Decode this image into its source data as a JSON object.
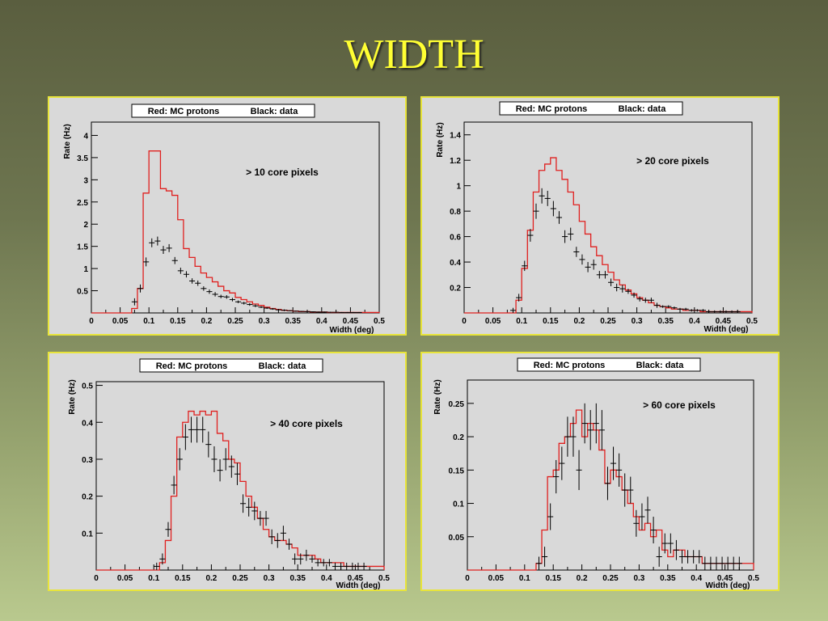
{
  "page": {
    "title": "WIDTH"
  },
  "colors": {
    "mc": "#e0201f",
    "data": "#000000",
    "title": "#ffff33",
    "panel_border": "#e8e43a"
  },
  "chart_data": [
    {
      "type": "line",
      "legend_text": [
        "Red: MC protons",
        "Black: data"
      ],
      "annotation": "> 10 core pixels",
      "xlabel": "Width (deg)",
      "ylabel": "Rate (Hz)",
      "xlim": [
        0,
        0.5
      ],
      "ylim": [
        0,
        4.3
      ],
      "xticks": [
        "0",
        "0.05",
        "0.1",
        "0.15",
        "0.2",
        "0.25",
        "0.3",
        "0.35",
        "0.4",
        "0.45",
        "0.5"
      ],
      "yticks": [
        "0.5",
        "1",
        "1.5",
        "2",
        "2.5",
        "3",
        "3.5",
        "4"
      ],
      "ytick_values": [
        0.5,
        1,
        1.5,
        2,
        2.5,
        3,
        3.5,
        4
      ],
      "bin_width": 0.01,
      "mc_values": [
        0,
        0,
        0,
        0,
        0,
        0,
        0,
        0.1,
        0.55,
        2.7,
        3.65,
        3.65,
        2.8,
        2.75,
        2.65,
        2.1,
        1.45,
        1.25,
        1.05,
        0.9,
        0.8,
        0.7,
        0.6,
        0.5,
        0.45,
        0.35,
        0.3,
        0.25,
        0.2,
        0.17,
        0.13,
        0.1,
        0.08,
        0.06,
        0.05,
        0.04,
        0.03,
        0.03,
        0.02,
        0.02,
        0.02,
        0.01,
        0.01,
        0.01,
        0.01,
        0.01,
        0.01,
        0.01,
        0.01,
        0.01
      ],
      "data_x": [
        0.075,
        0.085,
        0.095,
        0.105,
        0.115,
        0.125,
        0.135,
        0.145,
        0.155,
        0.165,
        0.175,
        0.185,
        0.195,
        0.205,
        0.215,
        0.225,
        0.235,
        0.245,
        0.255,
        0.265,
        0.275,
        0.285,
        0.295,
        0.305,
        0.315,
        0.325,
        0.335,
        0.345,
        0.355,
        0.365,
        0.375,
        0.385,
        0.395,
        0.405,
        0.415,
        0.425,
        0.435,
        0.445,
        0.455,
        0.465
      ],
      "data_y": [
        0.25,
        0.55,
        1.15,
        1.58,
        1.62,
        1.42,
        1.46,
        1.18,
        0.95,
        0.87,
        0.72,
        0.67,
        0.55,
        0.48,
        0.42,
        0.37,
        0.36,
        0.3,
        0.25,
        0.22,
        0.19,
        0.16,
        0.13,
        0.11,
        0.09,
        0.07,
        0.06,
        0.05,
        0.04,
        0.035,
        0.03,
        0.025,
        0.02,
        0.02,
        0.015,
        0.015,
        0.01,
        0.01,
        0.01,
        0.01
      ],
      "data_err": [
        0.08,
        0.09,
        0.1,
        0.1,
        0.1,
        0.09,
        0.09,
        0.08,
        0.07,
        0.07,
        0.06,
        0.06,
        0.05,
        0.05,
        0.05,
        0.04,
        0.04,
        0.04,
        0.03,
        0.03,
        0.03,
        0.03,
        0.02,
        0.02,
        0.02,
        0.02,
        0.02,
        0.01,
        0.01,
        0.01,
        0.01,
        0.01,
        0.01,
        0.01,
        0.01,
        0.01,
        0.01,
        0.01,
        0.01,
        0.01
      ]
    },
    {
      "type": "line",
      "legend_text": [
        "Red: MC protons",
        "Black: data"
      ],
      "annotation": "> 20 core pixels",
      "xlabel": "Width (deg)",
      "ylabel": "Rate (Hz)",
      "xlim": [
        0,
        0.5
      ],
      "ylim": [
        0,
        1.5
      ],
      "xticks": [
        "0",
        "0.05",
        "0.1",
        "0.15",
        "0.2",
        "0.25",
        "0.3",
        "0.35",
        "0.4",
        "0.45",
        "0.5"
      ],
      "yticks": [
        "0.2",
        "0.4",
        "0.6",
        "0.8",
        "1",
        "1.2",
        "1.4"
      ],
      "ytick_values": [
        0.2,
        0.4,
        0.6,
        0.8,
        1,
        1.2,
        1.4
      ],
      "bin_width": 0.01,
      "mc_values": [
        0,
        0,
        0,
        0,
        0,
        0,
        0,
        0,
        0,
        0.1,
        0.35,
        0.65,
        0.95,
        1.12,
        1.17,
        1.22,
        1.12,
        1.05,
        0.95,
        0.85,
        0.72,
        0.62,
        0.52,
        0.45,
        0.38,
        0.32,
        0.26,
        0.22,
        0.18,
        0.15,
        0.12,
        0.1,
        0.08,
        0.06,
        0.05,
        0.04,
        0.03,
        0.03,
        0.02,
        0.02,
        0.02,
        0.01,
        0.01,
        0.01,
        0.01,
        0.01,
        0.01,
        0.01,
        0.01,
        0.01
      ],
      "data_x": [
        0.085,
        0.095,
        0.105,
        0.115,
        0.125,
        0.135,
        0.145,
        0.155,
        0.165,
        0.175,
        0.185,
        0.195,
        0.205,
        0.215,
        0.225,
        0.235,
        0.245,
        0.255,
        0.265,
        0.275,
        0.285,
        0.295,
        0.305,
        0.315,
        0.325,
        0.335,
        0.345,
        0.355,
        0.365,
        0.375,
        0.385,
        0.395,
        0.405,
        0.415,
        0.425,
        0.435,
        0.445,
        0.455,
        0.465,
        0.475
      ],
      "data_y": [
        0.02,
        0.12,
        0.37,
        0.61,
        0.8,
        0.92,
        0.9,
        0.82,
        0.75,
        0.6,
        0.62,
        0.48,
        0.42,
        0.36,
        0.38,
        0.3,
        0.3,
        0.24,
        0.2,
        0.19,
        0.17,
        0.14,
        0.11,
        0.1,
        0.1,
        0.06,
        0.05,
        0.05,
        0.04,
        0.03,
        0.03,
        0.02,
        0.02,
        0.02,
        0.01,
        0.01,
        0.01,
        0.01,
        0.01,
        0.01
      ],
      "data_err": [
        0.02,
        0.03,
        0.04,
        0.05,
        0.06,
        0.06,
        0.06,
        0.06,
        0.05,
        0.05,
        0.05,
        0.04,
        0.04,
        0.04,
        0.04,
        0.03,
        0.03,
        0.03,
        0.03,
        0.03,
        0.02,
        0.02,
        0.02,
        0.02,
        0.02,
        0.02,
        0.01,
        0.01,
        0.01,
        0.01,
        0.01,
        0.01,
        0.01,
        0.01,
        0.01,
        0.01,
        0.01,
        0.01,
        0.01,
        0.01
      ]
    },
    {
      "type": "line",
      "legend_text": [
        "Red: MC protons",
        "Black: data"
      ],
      "annotation": "> 40 core pixels",
      "xlabel": "Width (deg)",
      "ylabel": "Rate (Hz)",
      "xlim": [
        0,
        0.5
      ],
      "ylim": [
        0,
        0.51
      ],
      "xticks": [
        "0",
        "0.05",
        "0.1",
        "0.15",
        "0.2",
        "0.25",
        "0.3",
        "0.35",
        "0.4",
        "0.45",
        "0.5"
      ],
      "yticks": [
        "0.1",
        "0.2",
        "0.3",
        "0.4",
        "0.5"
      ],
      "ytick_values": [
        0.1,
        0.2,
        0.3,
        0.4,
        0.5
      ],
      "bin_width": 0.01,
      "mc_values": [
        0,
        0,
        0,
        0,
        0,
        0,
        0,
        0,
        0,
        0,
        0,
        0.02,
        0.08,
        0.2,
        0.36,
        0.4,
        0.43,
        0.42,
        0.43,
        0.42,
        0.43,
        0.37,
        0.35,
        0.3,
        0.29,
        0.24,
        0.2,
        0.17,
        0.14,
        0.11,
        0.09,
        0.08,
        0.08,
        0.07,
        0.06,
        0.04,
        0.04,
        0.04,
        0.03,
        0.02,
        0.02,
        0.02,
        0.02,
        0.01,
        0.01,
        0.01,
        0.01,
        0.01,
        0.01,
        0.01
      ],
      "data_x": [
        0.105,
        0.115,
        0.125,
        0.135,
        0.145,
        0.155,
        0.165,
        0.175,
        0.185,
        0.195,
        0.205,
        0.215,
        0.225,
        0.235,
        0.245,
        0.255,
        0.265,
        0.275,
        0.285,
        0.295,
        0.305,
        0.315,
        0.325,
        0.335,
        0.345,
        0.355,
        0.365,
        0.375,
        0.385,
        0.395,
        0.405,
        0.415,
        0.425,
        0.435,
        0.445,
        0.455,
        0.465
      ],
      "data_y": [
        0.01,
        0.03,
        0.11,
        0.23,
        0.3,
        0.36,
        0.38,
        0.38,
        0.38,
        0.34,
        0.3,
        0.27,
        0.3,
        0.28,
        0.26,
        0.18,
        0.17,
        0.16,
        0.14,
        0.14,
        0.09,
        0.08,
        0.1,
        0.07,
        0.03,
        0.03,
        0.04,
        0.03,
        0.02,
        0.02,
        0.02,
        0.01,
        0.01,
        0.01,
        0.01,
        0.01,
        0.01
      ],
      "data_err": [
        0.01,
        0.015,
        0.02,
        0.025,
        0.03,
        0.035,
        0.035,
        0.035,
        0.035,
        0.035,
        0.035,
        0.03,
        0.03,
        0.03,
        0.03,
        0.025,
        0.025,
        0.025,
        0.02,
        0.02,
        0.02,
        0.02,
        0.02,
        0.015,
        0.015,
        0.015,
        0.015,
        0.01,
        0.01,
        0.01,
        0.01,
        0.01,
        0.01,
        0.01,
        0.01,
        0.01,
        0.01
      ]
    },
    {
      "type": "line",
      "legend_text": [
        "Red: MC protons",
        "Black: data"
      ],
      "annotation": "> 60 core pixels",
      "xlabel": "Width (deg)",
      "ylabel": "Rate (Hz)",
      "xlim": [
        0,
        0.5
      ],
      "ylim": [
        0,
        0.285
      ],
      "xticks": [
        "0",
        "0.05",
        "0.1",
        "0.15",
        "0.2",
        "0.25",
        "0.3",
        "0.35",
        "0.4",
        "0.45",
        "0.5"
      ],
      "yticks": [
        "0.05",
        "0.1",
        "0.15",
        "0.2",
        "0.25"
      ],
      "ytick_values": [
        0.05,
        0.1,
        0.15,
        0.2,
        0.25
      ],
      "bin_width": 0.01,
      "mc_values": [
        0,
        0,
        0,
        0,
        0,
        0,
        0,
        0,
        0,
        0,
        0,
        0,
        0.01,
        0.06,
        0.14,
        0.15,
        0.19,
        0.2,
        0.22,
        0.24,
        0.2,
        0.22,
        0.21,
        0.18,
        0.13,
        0.15,
        0.14,
        0.12,
        0.1,
        0.08,
        0.06,
        0.07,
        0.05,
        0.06,
        0.03,
        0.02,
        0.03,
        0.03,
        0.02,
        0.02,
        0.02,
        0.01,
        0.01,
        0.01,
        0.01,
        0.01,
        0.01,
        0.01,
        0.01,
        0.01
      ],
      "data_x": [
        0.125,
        0.135,
        0.145,
        0.155,
        0.165,
        0.175,
        0.185,
        0.195,
        0.205,
        0.215,
        0.225,
        0.235,
        0.245,
        0.255,
        0.265,
        0.275,
        0.285,
        0.295,
        0.305,
        0.315,
        0.325,
        0.335,
        0.345,
        0.355,
        0.365,
        0.375,
        0.385,
        0.395,
        0.405,
        0.415,
        0.425,
        0.435,
        0.445,
        0.455,
        0.465,
        0.475
      ],
      "data_y": [
        0.01,
        0.02,
        0.08,
        0.14,
        0.16,
        0.2,
        0.2,
        0.15,
        0.22,
        0.21,
        0.22,
        0.21,
        0.13,
        0.16,
        0.15,
        0.12,
        0.12,
        0.07,
        0.08,
        0.09,
        0.06,
        0.02,
        0.04,
        0.04,
        0.03,
        0.02,
        0.02,
        0.02,
        0.02,
        0.01,
        0.01,
        0.01,
        0.01,
        0.01,
        0.01,
        0.01
      ],
      "data_err": [
        0.01,
        0.015,
        0.02,
        0.025,
        0.025,
        0.03,
        0.03,
        0.03,
        0.03,
        0.03,
        0.03,
        0.03,
        0.025,
        0.025,
        0.025,
        0.025,
        0.02,
        0.02,
        0.02,
        0.02,
        0.02,
        0.015,
        0.015,
        0.015,
        0.015,
        0.01,
        0.01,
        0.01,
        0.01,
        0.01,
        0.01,
        0.01,
        0.01,
        0.01,
        0.01,
        0.01
      ]
    }
  ]
}
